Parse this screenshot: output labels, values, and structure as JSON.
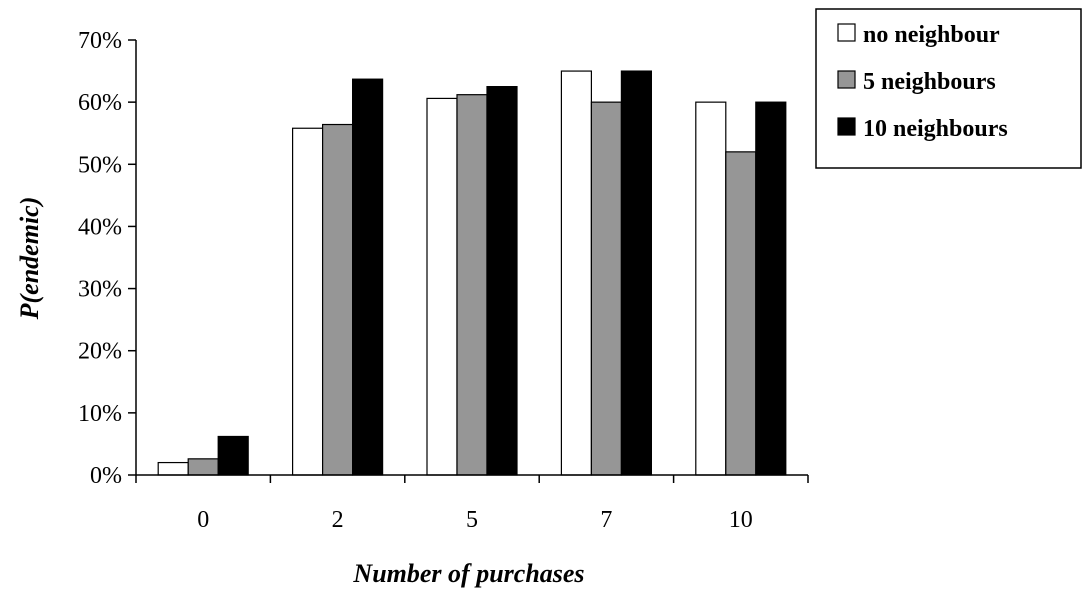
{
  "chart_data": {
    "type": "bar",
    "title": "",
    "xlabel": "Number of purchases",
    "ylabel": "P(endemic)",
    "categories": [
      "0",
      "2",
      "5",
      "7",
      "10"
    ],
    "ylim": [
      0,
      70
    ],
    "yticks": [
      0,
      10,
      20,
      30,
      40,
      50,
      60,
      70
    ],
    "ytick_labels": [
      "0%",
      "10%",
      "20%",
      "30%",
      "40%",
      "50%",
      "60%",
      "70%"
    ],
    "y_unit": "%",
    "grid": false,
    "legend_position": "top-right",
    "series": [
      {
        "name": "no neighbour",
        "color": "#ffffff",
        "values": [
          2,
          55.8,
          60.6,
          65,
          60
        ]
      },
      {
        "name": "5 neighbours",
        "color": "#969696",
        "values": [
          2.6,
          56.4,
          61.2,
          60,
          52
        ]
      },
      {
        "name": "10 neighbours",
        "color": "#000000",
        "values": [
          6.2,
          63.7,
          62.5,
          65,
          60
        ]
      }
    ]
  }
}
